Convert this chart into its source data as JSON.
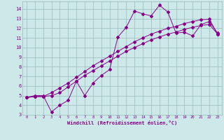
{
  "xlabel": "Windchill (Refroidissement éolien,°C)",
  "xlim": [
    -0.5,
    23.5
  ],
  "ylim": [
    3,
    14.8
  ],
  "xticks": [
    0,
    1,
    2,
    3,
    4,
    5,
    6,
    7,
    8,
    9,
    10,
    11,
    12,
    13,
    14,
    15,
    16,
    17,
    18,
    19,
    20,
    21,
    22,
    23
  ],
  "yticks": [
    3,
    4,
    5,
    6,
    7,
    8,
    9,
    10,
    11,
    12,
    13,
    14
  ],
  "background_color": "#cce8e8",
  "line_color": "#880088",
  "grid_color": "#99bbbb",
  "line1_x": [
    0,
    1,
    2,
    3,
    4,
    5,
    6,
    7,
    8,
    9,
    10,
    11,
    12,
    13,
    14,
    15,
    16,
    17,
    18,
    19,
    20,
    21,
    22,
    23
  ],
  "line1_y": [
    4.8,
    5.0,
    5.0,
    3.3,
    4.0,
    4.5,
    6.5,
    5.0,
    6.3,
    7.1,
    7.7,
    11.1,
    12.1,
    13.8,
    13.5,
    13.3,
    14.4,
    13.7,
    11.5,
    11.6,
    11.2,
    12.4,
    12.7,
    11.5
  ],
  "line2_x": [
    0,
    1,
    2,
    3,
    4,
    5,
    6,
    7,
    8,
    9,
    10,
    11,
    12,
    13,
    14,
    15,
    16,
    17,
    18,
    19,
    20,
    21,
    22,
    23
  ],
  "line2_y": [
    4.8,
    4.9,
    4.9,
    5.3,
    5.8,
    6.3,
    6.9,
    7.5,
    8.1,
    8.6,
    9.1,
    9.6,
    10.1,
    10.6,
    11.0,
    11.4,
    11.7,
    12.0,
    12.2,
    12.5,
    12.7,
    12.9,
    12.95,
    11.4
  ],
  "line3_x": [
    0,
    1,
    2,
    3,
    4,
    5,
    6,
    7,
    8,
    9,
    10,
    11,
    12,
    13,
    14,
    15,
    16,
    17,
    18,
    19,
    20,
    21,
    22,
    23
  ],
  "line3_y": [
    4.8,
    4.9,
    4.9,
    5.0,
    5.3,
    5.9,
    6.5,
    7.1,
    7.6,
    8.1,
    8.6,
    9.1,
    9.6,
    10.0,
    10.4,
    10.8,
    11.1,
    11.4,
    11.6,
    11.9,
    12.1,
    12.3,
    12.4,
    11.4
  ],
  "figsize": [
    3.2,
    2.0
  ],
  "dpi": 100
}
